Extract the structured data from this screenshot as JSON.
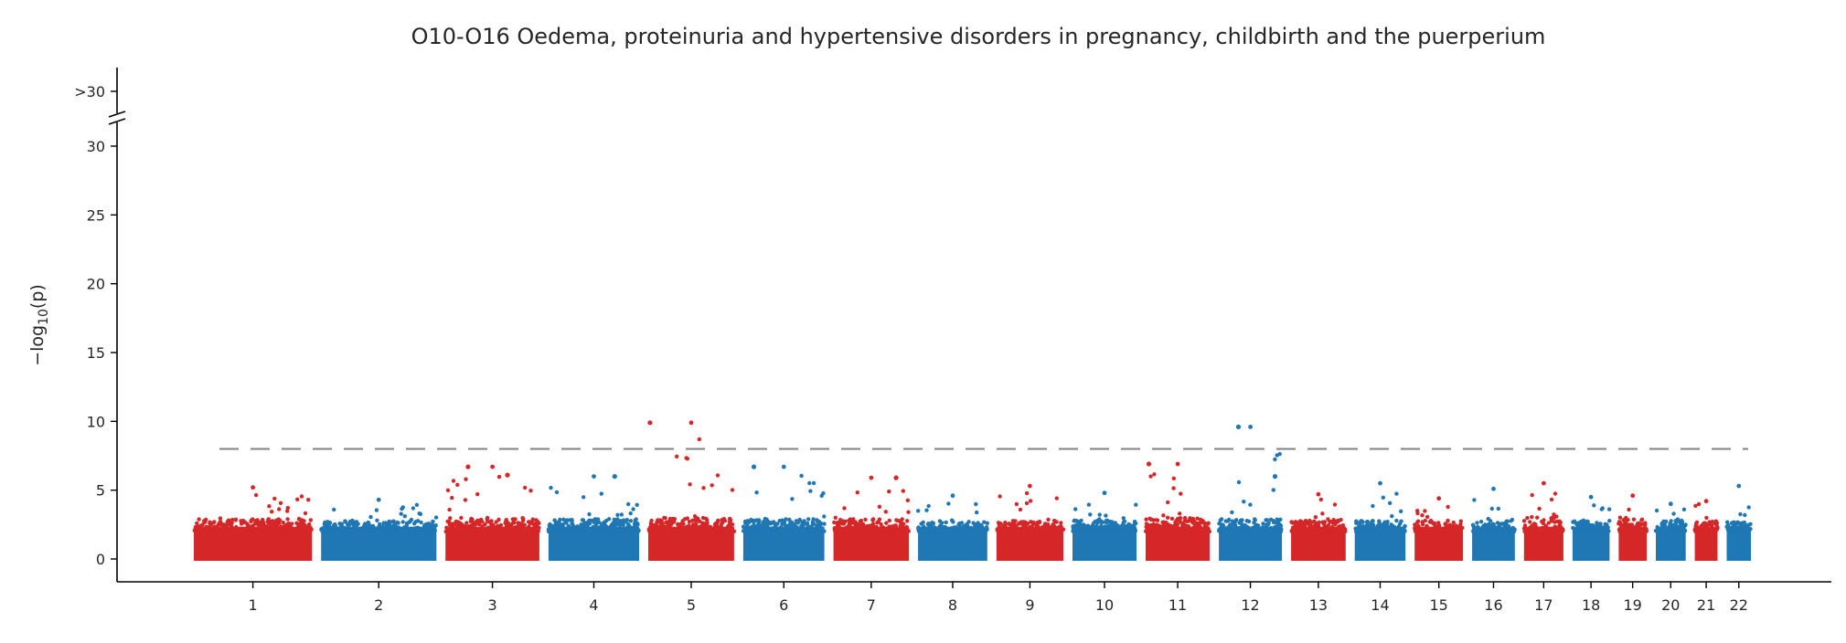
{
  "chart_data": {
    "type": "scatter",
    "subtype": "manhattan",
    "title": "O10-O16 Oedema, proteinuria and hypertensive disorders in pregnancy, childbirth and the puerperium",
    "ylabel": "−log10(p)",
    "ylabel_parts": {
      "pre": "−log",
      "sub": "10",
      "post": "(p)"
    },
    "xlabel": "",
    "ylim": [
      0,
      32
    ],
    "yticks": [
      0,
      5,
      10,
      15,
      20,
      25,
      30
    ],
    "y_cap_label": ">30",
    "y_axis_break": true,
    "significance_threshold": 8,
    "grid": false,
    "legend": "none",
    "colors": {
      "odd": "#d62728",
      "even": "#1f77b4",
      "threshold": "#808080",
      "axis": "#000000"
    },
    "chromosomes": [
      {
        "label": "1",
        "length": 249,
        "baseline_max": 2.9,
        "peak": 5.2
      },
      {
        "label": "2",
        "length": 243,
        "baseline_max": 2.8,
        "peak": 4.3
      },
      {
        "label": "3",
        "length": 198,
        "baseline_max": 3.0,
        "peak": 6.7
      },
      {
        "label": "4",
        "length": 191,
        "baseline_max": 2.9,
        "peak": 6.0
      },
      {
        "label": "5",
        "length": 181,
        "baseline_max": 3.0,
        "peak": 9.9
      },
      {
        "label": "6",
        "length": 171,
        "baseline_max": 2.9,
        "peak": 6.7
      },
      {
        "label": "7",
        "length": 159,
        "baseline_max": 2.9,
        "peak": 5.9
      },
      {
        "label": "8",
        "length": 146,
        "baseline_max": 2.7,
        "peak": 4.6
      },
      {
        "label": "9",
        "length": 141,
        "baseline_max": 2.8,
        "peak": 5.3
      },
      {
        "label": "10",
        "length": 135,
        "baseline_max": 2.8,
        "peak": 4.8
      },
      {
        "label": "11",
        "length": 135,
        "baseline_max": 3.0,
        "peak": 6.9
      },
      {
        "label": "12",
        "length": 133,
        "baseline_max": 2.9,
        "peak": 9.6
      },
      {
        "label": "13",
        "length": 115,
        "baseline_max": 2.8,
        "peak": 4.7
      },
      {
        "label": "14",
        "length": 107,
        "baseline_max": 2.8,
        "peak": 5.5
      },
      {
        "label": "15",
        "length": 102,
        "baseline_max": 2.8,
        "peak": 4.4
      },
      {
        "label": "16",
        "length": 90,
        "baseline_max": 2.8,
        "peak": 5.1
      },
      {
        "label": "17",
        "length": 83,
        "baseline_max": 3.1,
        "peak": 5.5
      },
      {
        "label": "18",
        "length": 78,
        "baseline_max": 2.8,
        "peak": 4.5
      },
      {
        "label": "19",
        "length": 59,
        "baseline_max": 2.9,
        "peak": 4.6
      },
      {
        "label": "20",
        "length": 63,
        "baseline_max": 2.8,
        "peak": 4.0
      },
      {
        "label": "21",
        "length": 48,
        "baseline_max": 2.8,
        "peak": 4.2
      },
      {
        "label": "22",
        "length": 51,
        "baseline_max": 2.7,
        "peak": 5.3
      }
    ],
    "annotated_hits": [
      {
        "chromosome": "5",
        "position_fraction": 0.02,
        "value": 9.9
      },
      {
        "chromosome": "12",
        "position_fraction": 0.31,
        "value": 9.6
      },
      {
        "chromosome": "11",
        "position_fraction": 0.05,
        "value": 6.9
      },
      {
        "chromosome": "3",
        "position_fraction": 0.24,
        "value": 6.7
      },
      {
        "chromosome": "6",
        "position_fraction": 0.13,
        "value": 6.7
      },
      {
        "chromosome": "3",
        "position_fraction": 0.66,
        "value": 6.1
      },
      {
        "chromosome": "4",
        "position_fraction": 0.73,
        "value": 6.0
      },
      {
        "chromosome": "12",
        "position_fraction": 0.89,
        "value": 6.0
      },
      {
        "chromosome": "7",
        "position_fraction": 0.83,
        "value": 5.9
      }
    ]
  }
}
